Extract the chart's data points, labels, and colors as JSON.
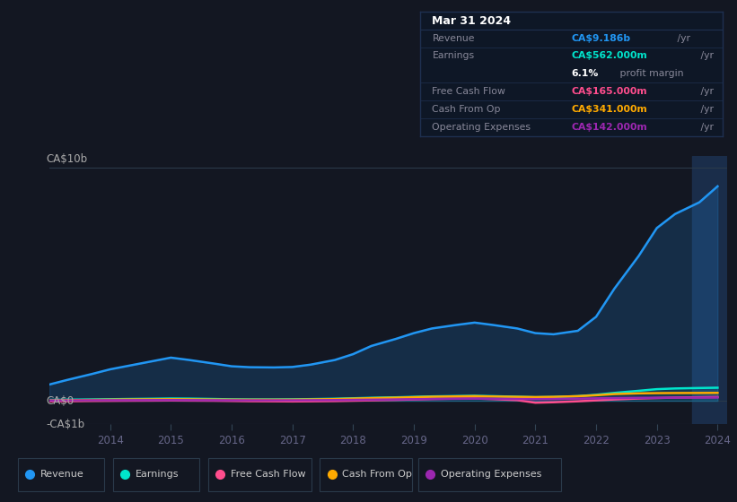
{
  "bg_color": "#131722",
  "plot_bg_color": "#131722",
  "ylabel_top": "CA$10b",
  "ylabel_zero": "CA$0",
  "ylabel_neg": "-CA$1b",
  "ylim_min": -1000000000,
  "ylim_max": 10500000000,
  "years": [
    2013.0,
    2013.3,
    2013.7,
    2014.0,
    2014.3,
    2014.7,
    2015.0,
    2015.3,
    2015.7,
    2016.0,
    2016.3,
    2016.7,
    2017.0,
    2017.3,
    2017.7,
    2018.0,
    2018.3,
    2018.7,
    2019.0,
    2019.3,
    2019.7,
    2020.0,
    2020.3,
    2020.7,
    2021.0,
    2021.3,
    2021.7,
    2022.0,
    2022.3,
    2022.7,
    2023.0,
    2023.3,
    2023.7,
    2024.0
  ],
  "revenue": [
    700000000,
    900000000,
    1150000000,
    1350000000,
    1500000000,
    1700000000,
    1850000000,
    1750000000,
    1600000000,
    1480000000,
    1440000000,
    1430000000,
    1450000000,
    1550000000,
    1750000000,
    2000000000,
    2350000000,
    2650000000,
    2900000000,
    3100000000,
    3250000000,
    3350000000,
    3250000000,
    3100000000,
    2900000000,
    2850000000,
    3000000000,
    3600000000,
    4800000000,
    6200000000,
    7400000000,
    8000000000,
    8500000000,
    9186000000
  ],
  "earnings": [
    40000000,
    50000000,
    60000000,
    70000000,
    80000000,
    90000000,
    100000000,
    95000000,
    80000000,
    65000000,
    60000000,
    60000000,
    65000000,
    75000000,
    90000000,
    110000000,
    130000000,
    150000000,
    170000000,
    190000000,
    205000000,
    215000000,
    200000000,
    175000000,
    155000000,
    165000000,
    200000000,
    260000000,
    340000000,
    430000000,
    500000000,
    530000000,
    550000000,
    562000000
  ],
  "free_cash_flow": [
    -20000000,
    -15000000,
    -5000000,
    0,
    5000000,
    10000000,
    15000000,
    10000000,
    5000000,
    -5000000,
    -15000000,
    -20000000,
    -25000000,
    -20000000,
    -10000000,
    5000000,
    20000000,
    40000000,
    60000000,
    80000000,
    95000000,
    100000000,
    75000000,
    30000000,
    -80000000,
    -60000000,
    -20000000,
    20000000,
    60000000,
    100000000,
    120000000,
    140000000,
    155000000,
    165000000
  ],
  "cash_from_op": [
    20000000,
    30000000,
    40000000,
    50000000,
    60000000,
    65000000,
    70000000,
    65000000,
    55000000,
    50000000,
    48000000,
    48000000,
    50000000,
    60000000,
    75000000,
    95000000,
    115000000,
    135000000,
    155000000,
    175000000,
    190000000,
    200000000,
    185000000,
    170000000,
    160000000,
    170000000,
    200000000,
    240000000,
    290000000,
    320000000,
    330000000,
    335000000,
    338000000,
    341000000
  ],
  "operating_expenses": [
    15000000,
    20000000,
    25000000,
    28000000,
    30000000,
    33000000,
    35000000,
    32000000,
    28000000,
    25000000,
    23000000,
    23000000,
    24000000,
    28000000,
    34000000,
    42000000,
    50000000,
    60000000,
    70000000,
    80000000,
    88000000,
    93000000,
    88000000,
    80000000,
    75000000,
    80000000,
    95000000,
    108000000,
    120000000,
    128000000,
    132000000,
    135000000,
    138000000,
    142000000
  ],
  "revenue_color": "#2196f3",
  "earnings_color": "#00e5cc",
  "fcf_color": "#ff4d8d",
  "cashop_color": "#ffaa00",
  "opex_color": "#9c27b0",
  "highlight_start": 2023.58,
  "info_box_bg": "#0e1726",
  "info_box_border": "#1e3050",
  "info_title": "Mar 31 2024",
  "info_rows": [
    {
      "label": "Revenue",
      "value": "CA$9.186b",
      "value_color": "#2196f3",
      "suffix": " /yr",
      "sep": true
    },
    {
      "label": "Earnings",
      "value": "CA$562.000m",
      "value_color": "#00e5cc",
      "suffix": " /yr",
      "sep": false
    },
    {
      "label": "",
      "value": "6.1%",
      "value_color": "#ffffff",
      "suffix": " profit margin",
      "sep": true
    },
    {
      "label": "Free Cash Flow",
      "value": "CA$165.000m",
      "value_color": "#ff4d8d",
      "suffix": " /yr",
      "sep": true
    },
    {
      "label": "Cash From Op",
      "value": "CA$341.000m",
      "value_color": "#ffaa00",
      "suffix": " /yr",
      "sep": true
    },
    {
      "label": "Operating Expenses",
      "value": "CA$142.000m",
      "value_color": "#9c27b0",
      "suffix": " /yr",
      "sep": false
    }
  ],
  "legend_items": [
    {
      "label": "Revenue",
      "color": "#2196f3"
    },
    {
      "label": "Earnings",
      "color": "#00e5cc"
    },
    {
      "label": "Free Cash Flow",
      "color": "#ff4d8d"
    },
    {
      "label": "Cash From Op",
      "color": "#ffaa00"
    },
    {
      "label": "Operating Expenses",
      "color": "#9c27b0"
    }
  ],
  "xticks": [
    2014,
    2015,
    2016,
    2017,
    2018,
    2019,
    2020,
    2021,
    2022,
    2023,
    2024
  ]
}
